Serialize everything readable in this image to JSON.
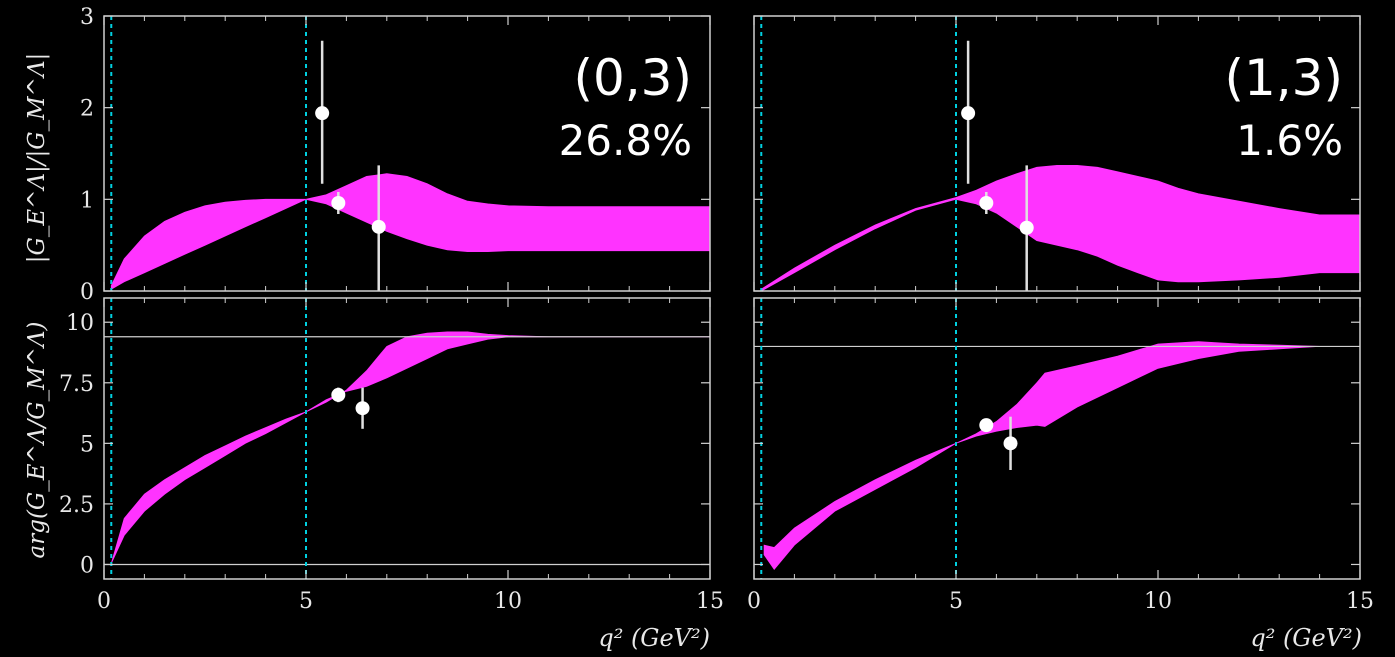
{
  "figure": {
    "xlabel": "q² (GeV²)",
    "ylabel_top": "|G_E^Λ|/|G_M^Λ|",
    "ylabel_bottom": "arg(G_E^Λ/G_M^Λ)",
    "xticks": [
      "0",
      "5",
      "10",
      "15"
    ],
    "yticks_top": [
      "0",
      "1",
      "2",
      "3"
    ],
    "yticks_bottom": [
      "0",
      "2.5",
      "5",
      "7.5",
      "10"
    ],
    "colors": {
      "band": "#ff33ff",
      "reference_lines": "#00d0e0",
      "points": "#ffffff",
      "frame": "#d0d0d0"
    }
  },
  "panels": [
    {
      "id": "left",
      "combo": "(0,3)",
      "percent": "26.8%"
    },
    {
      "id": "right",
      "combo": "(1,3)",
      "percent": "1.6%"
    }
  ],
  "chart_data": [
    {
      "type": "area",
      "panel": "left-top",
      "xlim": [
        0,
        15
      ],
      "ylim": [
        0,
        3
      ],
      "ref_lines_x": [
        0.18,
        5.0
      ],
      "band_x": [
        0.18,
        0.5,
        1,
        1.5,
        2,
        2.5,
        3,
        3.5,
        4,
        4.5,
        5,
        5.5,
        6,
        6.5,
        7,
        7.5,
        8,
        8.5,
        9,
        9.5,
        10,
        11,
        12,
        13,
        14,
        15
      ],
      "band_upper": [
        0.06,
        0.35,
        0.6,
        0.76,
        0.86,
        0.93,
        0.97,
        0.99,
        1.0,
        1.0,
        1.0,
        1.05,
        1.15,
        1.25,
        1.28,
        1.25,
        1.17,
        1.06,
        0.98,
        0.95,
        0.93,
        0.92,
        0.92,
        0.92,
        0.92,
        0.92
      ],
      "band_lower": [
        0.02,
        0.1,
        0.2,
        0.3,
        0.4,
        0.5,
        0.6,
        0.7,
        0.8,
        0.9,
        1.0,
        0.95,
        0.85,
        0.75,
        0.65,
        0.57,
        0.5,
        0.45,
        0.43,
        0.43,
        0.44,
        0.44,
        0.44,
        0.44,
        0.44,
        0.44
      ],
      "points": [
        {
          "x": 5.4,
          "y": 1.94,
          "ylo": 1.17,
          "yhi": 2.73
        },
        {
          "x": 5.8,
          "y": 0.96,
          "ylo": 0.84,
          "yhi": 1.08
        },
        {
          "x": 6.8,
          "y": 0.7,
          "ylo": 0.0,
          "yhi": 1.37
        }
      ]
    },
    {
      "type": "area",
      "panel": "left-bottom",
      "xlim": [
        0,
        15
      ],
      "ylim": [
        -0.6,
        11
      ],
      "ref_lines_x": [
        0.18,
        5.0
      ],
      "hline_y": [
        0,
        9.4
      ],
      "band_x": [
        0.18,
        0.5,
        1,
        1.5,
        2,
        2.5,
        3,
        3.5,
        4,
        4.5,
        5,
        5.5,
        6,
        6.5,
        7,
        7.5,
        8,
        8.5,
        9,
        9.5,
        10,
        11,
        12,
        13,
        14,
        15
      ],
      "band_upper": [
        0.05,
        1.9,
        2.9,
        3.5,
        4.0,
        4.5,
        4.9,
        5.3,
        5.65,
        6.0,
        6.3,
        6.7,
        7.2,
        8.0,
        9.0,
        9.4,
        9.55,
        9.6,
        9.6,
        9.5,
        9.45,
        9.4,
        9.4,
        9.4,
        9.4,
        9.4
      ],
      "band_lower": [
        0.05,
        1.2,
        2.2,
        2.9,
        3.5,
        4.0,
        4.5,
        5.0,
        5.4,
        5.85,
        6.3,
        6.8,
        7.15,
        7.35,
        7.7,
        8.1,
        8.5,
        8.9,
        9.1,
        9.3,
        9.4,
        9.4,
        9.4,
        9.4,
        9.4,
        9.4
      ],
      "points": [
        {
          "x": 5.8,
          "y": 7.0,
          "ylo": 6.7,
          "yhi": 7.3
        },
        {
          "x": 6.4,
          "y": 6.45,
          "ylo": 5.6,
          "yhi": 7.3
        }
      ]
    },
    {
      "type": "area",
      "panel": "right-top",
      "xlim": [
        0,
        15
      ],
      "ylim": [
        0,
        3
      ],
      "ref_lines_x": [
        0.18,
        5.0
      ],
      "band_x": [
        0.18,
        1,
        2,
        3,
        4,
        5,
        5.5,
        6,
        6.5,
        7,
        7.5,
        8,
        8.5,
        9,
        9.5,
        10,
        10.5,
        11,
        12,
        13,
        14,
        15
      ],
      "band_upper": [
        0.02,
        0.25,
        0.5,
        0.72,
        0.9,
        1.02,
        1.1,
        1.2,
        1.28,
        1.35,
        1.37,
        1.37,
        1.35,
        1.3,
        1.25,
        1.2,
        1.12,
        1.06,
        0.98,
        0.9,
        0.83,
        0.83
      ],
      "band_lower": [
        0.0,
        0.2,
        0.45,
        0.68,
        0.88,
        1.0,
        0.95,
        0.85,
        0.7,
        0.55,
        0.5,
        0.45,
        0.38,
        0.28,
        0.2,
        0.12,
        0.1,
        0.1,
        0.12,
        0.15,
        0.2,
        0.2
      ],
      "points": [
        {
          "x": 5.3,
          "y": 1.94,
          "ylo": 1.17,
          "yhi": 2.73
        },
        {
          "x": 5.75,
          "y": 0.96,
          "ylo": 0.84,
          "yhi": 1.08
        },
        {
          "x": 6.75,
          "y": 0.69,
          "ylo": 0.0,
          "yhi": 1.37
        }
      ]
    },
    {
      "type": "area",
      "panel": "right-bottom",
      "xlim": [
        0,
        15
      ],
      "ylim": [
        -0.6,
        11
      ],
      "ref_lines_x": [
        0.18,
        5.0
      ],
      "hline_y": [
        9.0
      ],
      "band_x": [
        0.25,
        0.5,
        1,
        2,
        3,
        4,
        5,
        5.5,
        6,
        6.5,
        7,
        7.2,
        8,
        9,
        10,
        11,
        12,
        13,
        14,
        15
      ],
      "band_upper": [
        0.8,
        0.7,
        1.5,
        2.6,
        3.5,
        4.3,
        5.0,
        5.4,
        5.9,
        6.6,
        7.5,
        7.9,
        8.2,
        8.6,
        9.1,
        9.2,
        9.1,
        9.05,
        9.0,
        9.0
      ],
      "band_lower": [
        0.4,
        -0.2,
        0.8,
        2.2,
        3.1,
        4.0,
        5.0,
        5.3,
        5.5,
        5.65,
        5.75,
        5.7,
        6.5,
        7.3,
        8.1,
        8.5,
        8.8,
        8.9,
        9.0,
        9.0
      ],
      "points": [
        {
          "x": 5.75,
          "y": 5.75,
          "ylo": 5.5,
          "yhi": 6.0
        },
        {
          "x": 6.35,
          "y": 5.0,
          "ylo": 3.9,
          "yhi": 6.1
        }
      ]
    }
  ]
}
